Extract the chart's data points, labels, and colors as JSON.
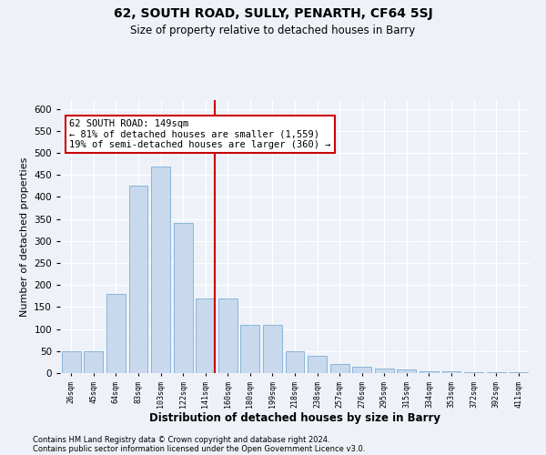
{
  "title_line1": "62, SOUTH ROAD, SULLY, PENARTH, CF64 5SJ",
  "title_line2": "Size of property relative to detached houses in Barry",
  "xlabel": "Distribution of detached houses by size in Barry",
  "ylabel": "Number of detached properties",
  "bar_color": "#c8d9ee",
  "bar_edge_color": "#8ab4d8",
  "categories": [
    "26sqm",
    "45sqm",
    "64sqm",
    "83sqm",
    "103sqm",
    "122sqm",
    "141sqm",
    "160sqm",
    "180sqm",
    "199sqm",
    "218sqm",
    "238sqm",
    "257sqm",
    "276sqm",
    "295sqm",
    "315sqm",
    "334sqm",
    "353sqm",
    "372sqm",
    "392sqm",
    "411sqm"
  ],
  "values": [
    50,
    50,
    180,
    425,
    470,
    340,
    170,
    170,
    110,
    110,
    50,
    40,
    20,
    15,
    10,
    8,
    5,
    4,
    3,
    2,
    2
  ],
  "ylim": [
    0,
    620
  ],
  "yticks": [
    0,
    50,
    100,
    150,
    200,
    250,
    300,
    350,
    400,
    450,
    500,
    550,
    600
  ],
  "vline_index": 6.42,
  "annotation_text": "62 SOUTH ROAD: 149sqm\n← 81% of detached houses are smaller (1,559)\n19% of semi-detached houses are larger (360) →",
  "annotation_box_color": "#ffffff",
  "annotation_box_edge": "#cc0000",
  "vline_color": "#cc0000",
  "footer_line1": "Contains HM Land Registry data © Crown copyright and database right 2024.",
  "footer_line2": "Contains public sector information licensed under the Open Government Licence v3.0.",
  "background_color": "#eef2f8",
  "grid_color": "#ffffff"
}
